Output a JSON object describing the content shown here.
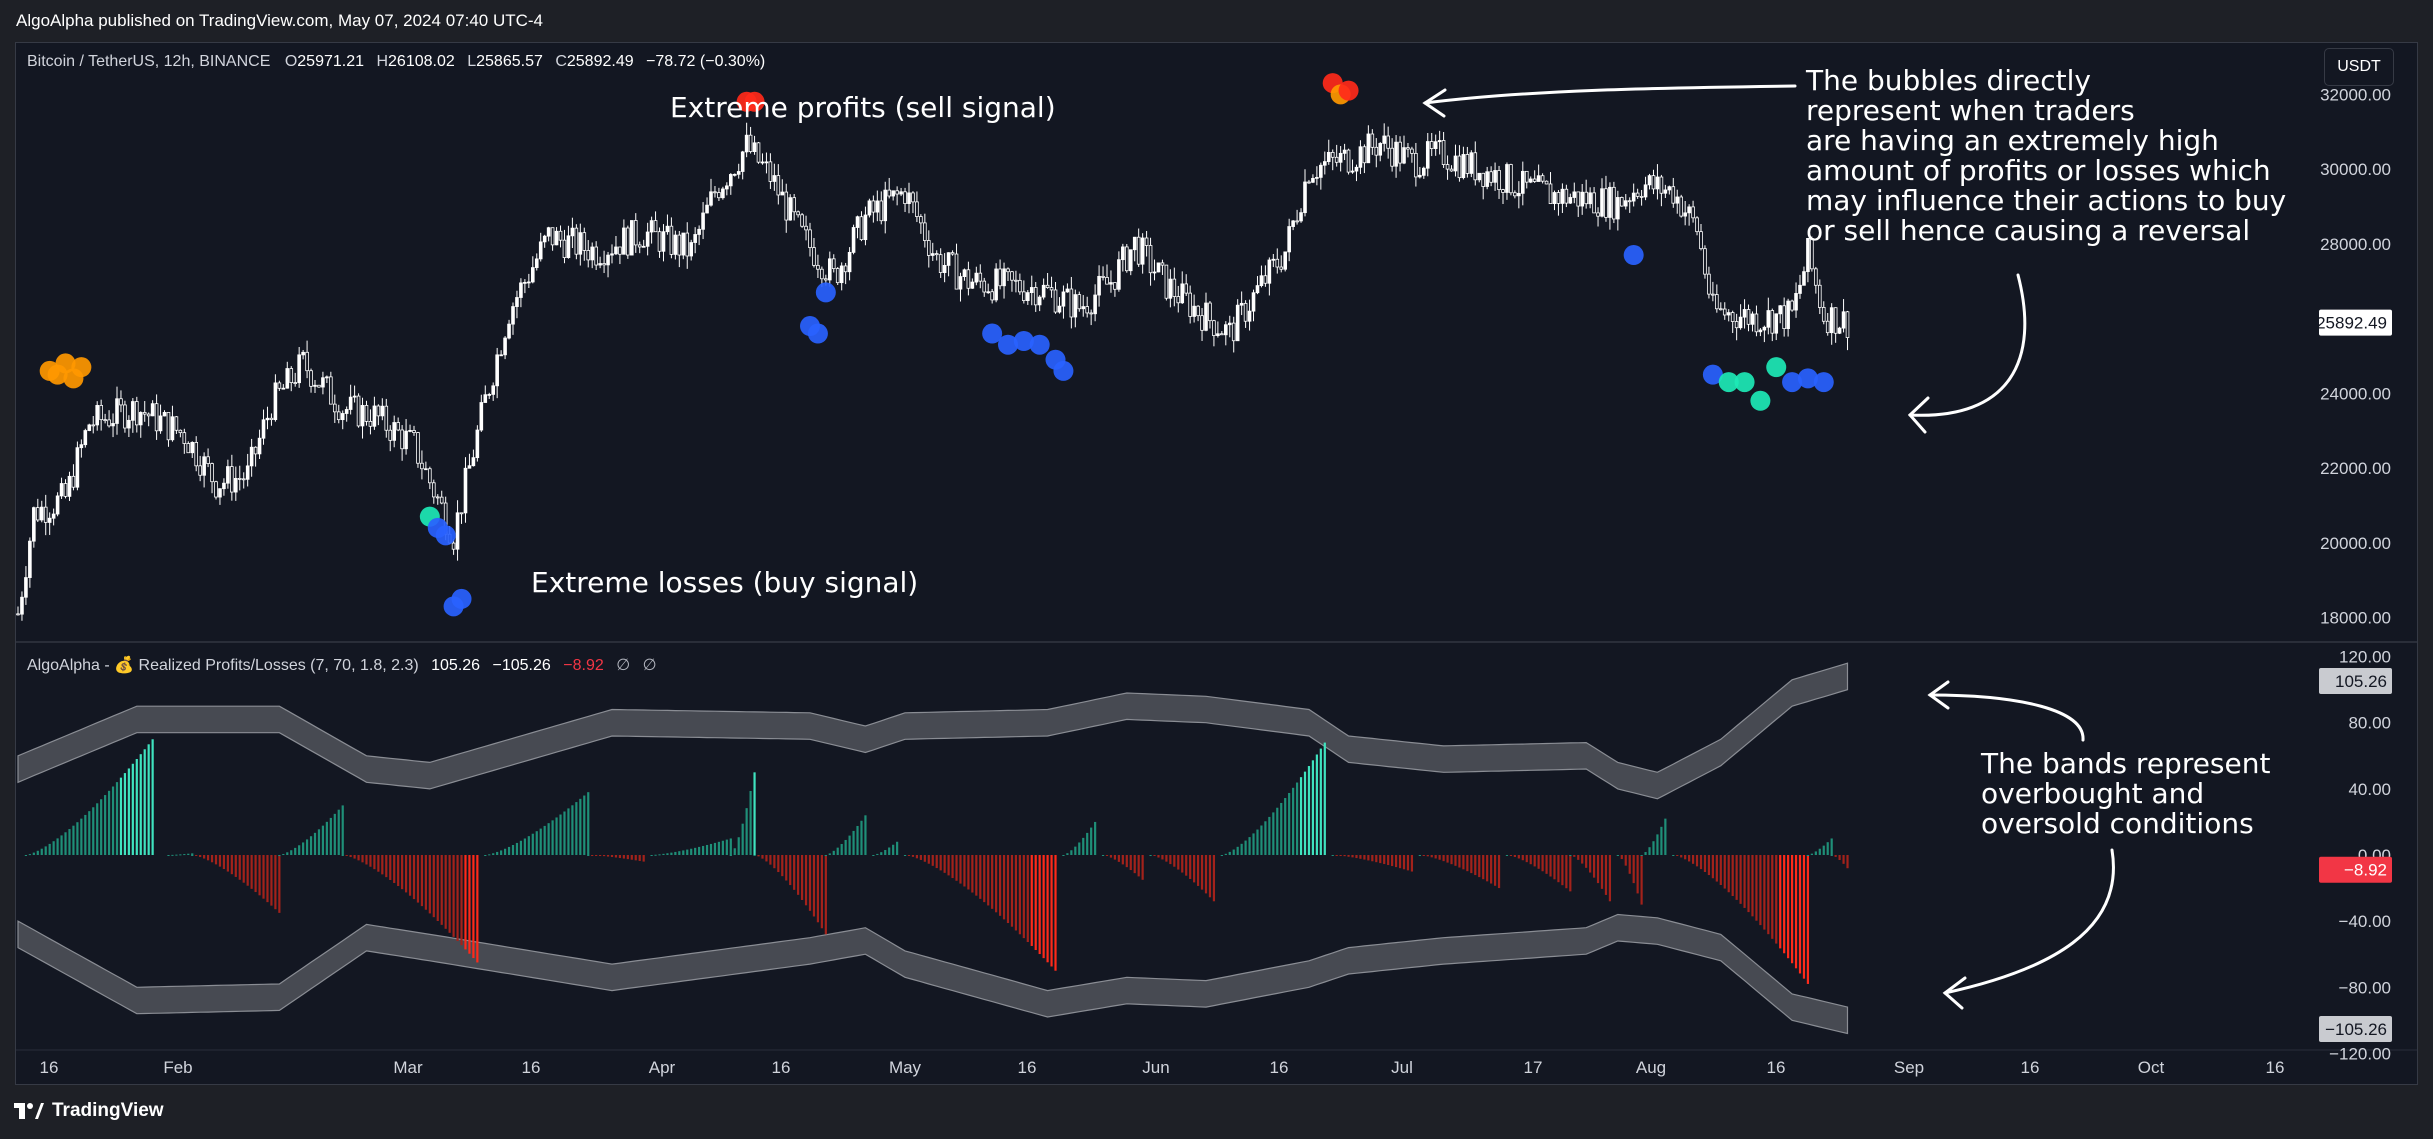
{
  "header": {
    "published": "AlgoAlpha published on TradingView.com, May 07, 2024 07:40 UTC-4"
  },
  "footer": {
    "brand": "TradingView"
  },
  "symbol": {
    "name": "Bitcoin / TetherUS, 12h, BINANCE",
    "o_label": "O",
    "o": "25971.21",
    "h_label": "H",
    "h": "26108.02",
    "l_label": "L",
    "l": "25865.57",
    "c_label": "C",
    "c": "25892.49",
    "change": "−78.72 (−0.30%)",
    "currency": "USDT",
    "last_price": "25892.49"
  },
  "indicator": {
    "name": "AlgoAlpha - 💰 Realized Profits/Losses (7, 70, 1.8, 2.3)",
    "upper": "105.26",
    "lower": "−105.26",
    "current": "−8.92",
    "na1": "∅",
    "na2": "∅",
    "upper_badge": "105.26",
    "current_badge": "−8.92",
    "lower_badge": "−105.26"
  },
  "annotations": {
    "profits": "Extreme profits (sell signal)",
    "losses": "Extreme losses (buy signal)",
    "bubbles": [
      "The bubbles directly",
      "represent when traders",
      "are having an extremely high",
      "amount of profits or losses which",
      "may influence their actions to buy",
      "or sell hence causing a reversal"
    ],
    "bands": [
      "The bands represent",
      "overbought and",
      "oversold conditions"
    ]
  },
  "colors": {
    "background": "#131722",
    "candle": "#ffffff",
    "profit_bar": "#26c6a6",
    "loss_bar": "#ff3b30",
    "band": "#474a52",
    "bubble_profit": [
      "#ff9800",
      "#ff3b30"
    ],
    "bubble_loss": [
      "#2962ff",
      "#1de9b6"
    ],
    "grid": "#1f2330"
  },
  "chart_data": [
    {
      "type": "candlestick",
      "title": "Bitcoin / TetherUS, 12h, BINANCE",
      "x_ticks": [
        "16",
        "Feb",
        "Mar",
        "16",
        "Apr",
        "16",
        "May",
        "16",
        "Jun",
        "16",
        "Jul",
        "17",
        "Aug",
        "16",
        "Sep",
        "16",
        "Oct",
        "16"
      ],
      "y_ticks": [
        18000,
        20000,
        22000,
        24000,
        26000,
        28000,
        30000,
        32000
      ],
      "ylim": [
        17400,
        33400
      ],
      "price_anchors": [
        {
          "t": 0,
          "p": 18100
        },
        {
          "t": 4,
          "p": 20800
        },
        {
          "t": 12,
          "p": 21200
        },
        {
          "t": 18,
          "p": 23200
        },
        {
          "t": 30,
          "p": 23600
        },
        {
          "t": 42,
          "p": 22900
        },
        {
          "t": 50,
          "p": 21600
        },
        {
          "t": 58,
          "p": 21800
        },
        {
          "t": 64,
          "p": 23700
        },
        {
          "t": 72,
          "p": 24800
        },
        {
          "t": 82,
          "p": 23600
        },
        {
          "t": 90,
          "p": 23400
        },
        {
          "t": 100,
          "p": 22600
        },
        {
          "t": 110,
          "p": 20200
        },
        {
          "t": 118,
          "p": 23800
        },
        {
          "t": 124,
          "p": 26200
        },
        {
          "t": 134,
          "p": 28200
        },
        {
          "t": 146,
          "p": 27800
        },
        {
          "t": 158,
          "p": 28300
        },
        {
          "t": 170,
          "p": 27800
        },
        {
          "t": 176,
          "p": 29400
        },
        {
          "t": 184,
          "p": 30600
        },
        {
          "t": 190,
          "p": 29800
        },
        {
          "t": 198,
          "p": 28200
        },
        {
          "t": 206,
          "p": 27100
        },
        {
          "t": 214,
          "p": 28700
        },
        {
          "t": 224,
          "p": 29400
        },
        {
          "t": 232,
          "p": 27600
        },
        {
          "t": 240,
          "p": 27000
        },
        {
          "t": 248,
          "p": 26900
        },
        {
          "t": 258,
          "p": 26800
        },
        {
          "t": 268,
          "p": 26300
        },
        {
          "t": 276,
          "p": 27000
        },
        {
          "t": 282,
          "p": 28000
        },
        {
          "t": 290,
          "p": 26900
        },
        {
          "t": 298,
          "p": 26200
        },
        {
          "t": 306,
          "p": 25600
        },
        {
          "t": 314,
          "p": 26900
        },
        {
          "t": 320,
          "p": 27800
        },
        {
          "t": 326,
          "p": 30000
        },
        {
          "t": 336,
          "p": 30300
        },
        {
          "t": 344,
          "p": 30700
        },
        {
          "t": 352,
          "p": 30200
        },
        {
          "t": 360,
          "p": 30400
        },
        {
          "t": 366,
          "p": 30100
        },
        {
          "t": 374,
          "p": 29800
        },
        {
          "t": 380,
          "p": 29500
        },
        {
          "t": 388,
          "p": 29300
        },
        {
          "t": 396,
          "p": 29200
        },
        {
          "t": 404,
          "p": 29100
        },
        {
          "t": 410,
          "p": 29600
        },
        {
          "t": 418,
          "p": 29400
        },
        {
          "t": 424,
          "p": 28400
        },
        {
          "t": 428,
          "p": 26200
        },
        {
          "t": 440,
          "p": 26000
        },
        {
          "t": 448,
          "p": 26100
        },
        {
          "t": 452,
          "p": 27700
        },
        {
          "t": 456,
          "p": 26100
        },
        {
          "t": 462,
          "p": 25900
        }
      ],
      "bubbles": [
        {
          "t": 8,
          "p": 24600,
          "kind": "profit"
        },
        {
          "t": 10,
          "p": 24500,
          "kind": "profit"
        },
        {
          "t": 12,
          "p": 24800,
          "kind": "profit"
        },
        {
          "t": 14,
          "p": 24400,
          "kind": "profit"
        },
        {
          "t": 16,
          "p": 24700,
          "kind": "profit"
        },
        {
          "t": 104,
          "p": 20700,
          "kind": "loss_strong"
        },
        {
          "t": 106,
          "p": 20400,
          "kind": "loss"
        },
        {
          "t": 108,
          "p": 20200,
          "kind": "loss"
        },
        {
          "t": 110,
          "p": 18300,
          "kind": "loss"
        },
        {
          "t": 112,
          "p": 18500,
          "kind": "loss"
        },
        {
          "t": 184,
          "p": 31800,
          "kind": "profit_strong"
        },
        {
          "t": 186,
          "p": 31800,
          "kind": "profit_strong"
        },
        {
          "t": 200,
          "p": 25800,
          "kind": "loss"
        },
        {
          "t": 202,
          "p": 25600,
          "kind": "loss"
        },
        {
          "t": 204,
          "p": 26700,
          "kind": "loss"
        },
        {
          "t": 246,
          "p": 25600,
          "kind": "loss"
        },
        {
          "t": 250,
          "p": 25300,
          "kind": "loss"
        },
        {
          "t": 254,
          "p": 25400,
          "kind": "loss"
        },
        {
          "t": 258,
          "p": 25300,
          "kind": "loss"
        },
        {
          "t": 262,
          "p": 24900,
          "kind": "loss"
        },
        {
          "t": 264,
          "p": 24600,
          "kind": "loss"
        },
        {
          "t": 332,
          "p": 32300,
          "kind": "profit_strong"
        },
        {
          "t": 334,
          "p": 32000,
          "kind": "profit"
        },
        {
          "t": 336,
          "p": 32100,
          "kind": "profit_strong"
        },
        {
          "t": 408,
          "p": 27700,
          "kind": "loss"
        },
        {
          "t": 428,
          "p": 24500,
          "kind": "loss"
        },
        {
          "t": 432,
          "p": 24300,
          "kind": "loss_strong"
        },
        {
          "t": 436,
          "p": 24300,
          "kind": "loss_strong"
        },
        {
          "t": 440,
          "p": 23800,
          "kind": "loss_strong"
        },
        {
          "t": 444,
          "p": 24700,
          "kind": "loss_strong"
        },
        {
          "t": 448,
          "p": 24300,
          "kind": "loss"
        },
        {
          "t": 452,
          "p": 24400,
          "kind": "loss"
        },
        {
          "t": 456,
          "p": 24300,
          "kind": "loss"
        }
      ]
    },
    {
      "type": "bar",
      "title": "AlgoAlpha - 💰 Realized Profits/Losses (7, 70, 1.8, 2.3)",
      "y_ticks": [
        -120,
        -80,
        -40,
        0,
        40,
        80,
        120
      ],
      "ylim": [
        -124,
        124
      ],
      "segments": [
        {
          "t0": 2,
          "t1": 34,
          "peak": 70
        },
        {
          "t0": 38,
          "t1": 44,
          "peak": 1
        },
        {
          "t0": 44,
          "t1": 66,
          "peak": -35
        },
        {
          "t0": 66,
          "t1": 82,
          "peak": 30
        },
        {
          "t0": 82,
          "t1": 116,
          "peak": -65
        },
        {
          "t0": 118,
          "t1": 144,
          "peak": 38
        },
        {
          "t0": 144,
          "t1": 158,
          "peak": -4
        },
        {
          "t0": 160,
          "t1": 180,
          "peak": 10
        },
        {
          "t0": 180,
          "t1": 186,
          "peak": 50
        },
        {
          "t0": 186,
          "t1": 204,
          "peak": -48
        },
        {
          "t0": 204,
          "t1": 214,
          "peak": 24
        },
        {
          "t0": 216,
          "t1": 222,
          "peak": 8
        },
        {
          "t0": 224,
          "t1": 262,
          "peak": -70
        },
        {
          "t0": 264,
          "t1": 272,
          "peak": 20
        },
        {
          "t0": 274,
          "t1": 284,
          "peak": -15
        },
        {
          "t0": 286,
          "t1": 302,
          "peak": -28
        },
        {
          "t0": 304,
          "t1": 330,
          "peak": 68
        },
        {
          "t0": 332,
          "t1": 352,
          "peak": -10
        },
        {
          "t0": 354,
          "t1": 374,
          "peak": -20
        },
        {
          "t0": 376,
          "t1": 392,
          "peak": -22
        },
        {
          "t0": 392,
          "t1": 402,
          "peak": -28
        },
        {
          "t0": 404,
          "t1": 410,
          "peak": -30
        },
        {
          "t0": 410,
          "t1": 416,
          "peak": 22
        },
        {
          "t0": 418,
          "t1": 452,
          "peak": -78
        },
        {
          "t0": 452,
          "t1": 458,
          "peak": 10
        },
        {
          "t0": 458,
          "t1": 462,
          "peak": -8
        }
      ],
      "upper_band": [
        {
          "t": 0,
          "v": 52
        },
        {
          "t": 30,
          "v": 82
        },
        {
          "t": 66,
          "v": 82
        },
        {
          "t": 88,
          "v": 52
        },
        {
          "t": 104,
          "v": 48
        },
        {
          "t": 150,
          "v": 80
        },
        {
          "t": 200,
          "v": 78
        },
        {
          "t": 214,
          "v": 70
        },
        {
          "t": 224,
          "v": 78
        },
        {
          "t": 260,
          "v": 80
        },
        {
          "t": 280,
          "v": 90
        },
        {
          "t": 300,
          "v": 88
        },
        {
          "t": 326,
          "v": 80
        },
        {
          "t": 336,
          "v": 64
        },
        {
          "t": 360,
          "v": 58
        },
        {
          "t": 396,
          "v": 60
        },
        {
          "t": 404,
          "v": 48
        },
        {
          "t": 414,
          "v": 42
        },
        {
          "t": 430,
          "v": 62
        },
        {
          "t": 448,
          "v": 98
        },
        {
          "t": 462,
          "v": 108
        }
      ],
      "lower_band": [
        {
          "t": 0,
          "v": -48
        },
        {
          "t": 30,
          "v": -88
        },
        {
          "t": 66,
          "v": -86
        },
        {
          "t": 88,
          "v": -50
        },
        {
          "t": 104,
          "v": -56
        },
        {
          "t": 150,
          "v": -74
        },
        {
          "t": 200,
          "v": -58
        },
        {
          "t": 214,
          "v": -52
        },
        {
          "t": 224,
          "v": -66
        },
        {
          "t": 260,
          "v": -90
        },
        {
          "t": 280,
          "v": -82
        },
        {
          "t": 300,
          "v": -84
        },
        {
          "t": 326,
          "v": -72
        },
        {
          "t": 336,
          "v": -64
        },
        {
          "t": 360,
          "v": -58
        },
        {
          "t": 396,
          "v": -52
        },
        {
          "t": 404,
          "v": -44
        },
        {
          "t": 414,
          "v": -46
        },
        {
          "t": 430,
          "v": -56
        },
        {
          "t": 448,
          "v": -92
        },
        {
          "t": 462,
          "v": -100
        }
      ],
      "band_width": 16
    }
  ]
}
